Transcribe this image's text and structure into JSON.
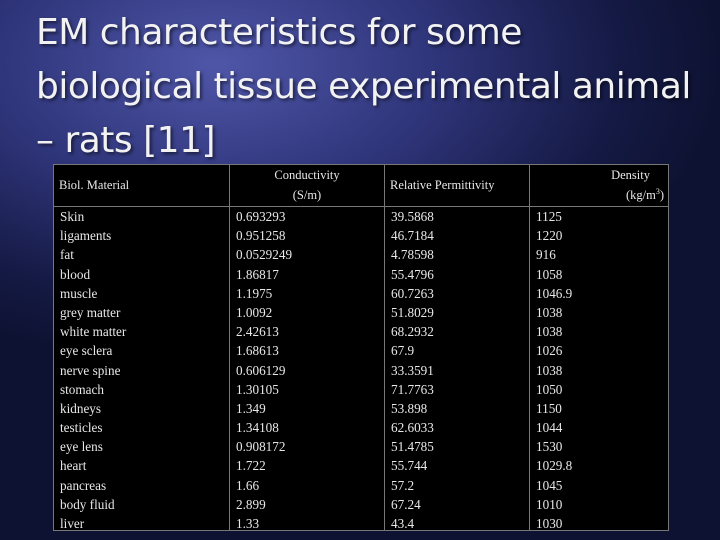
{
  "title": "EM characteristics for some biological tissue experimental animal – rats [11]",
  "table": {
    "headers": {
      "material": "Biol. Material",
      "conductivity": "Conductivity",
      "conductivity_unit": "(S/m)",
      "permittivity": "Relative Permittivity",
      "density": "Density",
      "density_unit_prefix": "(kg/m",
      "density_unit_sup": "3",
      "density_unit_suffix": ")"
    },
    "rows": [
      {
        "material": "Skin",
        "conductivity": "0.693293",
        "permittivity": "39.5868",
        "density": "1125"
      },
      {
        "material": "ligaments",
        "conductivity": "0.951258",
        "permittivity": "46.7184",
        "density": "1220"
      },
      {
        "material": "fat",
        "conductivity": "0.0529249",
        "permittivity": "4.78598",
        "density": "916"
      },
      {
        "material": "blood",
        "conductivity": "1.86817",
        "permittivity": "55.4796",
        "density": "1058"
      },
      {
        "material": "muscle",
        "conductivity": "1.1975",
        "permittivity": "60.7263",
        "density": "1046.9"
      },
      {
        "material": "grey matter",
        "conductivity": "1.0092",
        "permittivity": "51.8029",
        "density": "1038"
      },
      {
        "material": "white matter",
        "conductivity": "2.42613",
        "permittivity": "68.2932",
        "density": "1038"
      },
      {
        "material": "eye sclera",
        "conductivity": "1.68613",
        "permittivity": "67.9",
        "density": "1026"
      },
      {
        "material": "nerve spine",
        "conductivity": "0.606129",
        "permittivity": "33.3591",
        "density": "1038"
      },
      {
        "material": "stomach",
        "conductivity": "1.30105",
        "permittivity": "71.7763",
        "density": "1050"
      },
      {
        "material": "kidneys",
        "conductivity": "1.349",
        "permittivity": "53.898",
        "density": "1150"
      },
      {
        "material": "testicles",
        "conductivity": "1.34108",
        "permittivity": "62.6033",
        "density": "1044"
      },
      {
        "material": "eye lens",
        "conductivity": "0.908172",
        "permittivity": "51.4785",
        "density": "1530"
      },
      {
        "material": "heart",
        "conductivity": "1.722",
        "permittivity": "55.744",
        "density": "1029.8"
      },
      {
        "material": "pancreas",
        "conductivity": "1.66",
        "permittivity": "57.2",
        "density": "1045"
      },
      {
        "material": "body fluid",
        "conductivity": "2.899",
        "permittivity": "67.24",
        "density": "1010"
      },
      {
        "material": "liver",
        "conductivity": "1.33",
        "permittivity": "43.4",
        "density": "1030"
      }
    ]
  }
}
